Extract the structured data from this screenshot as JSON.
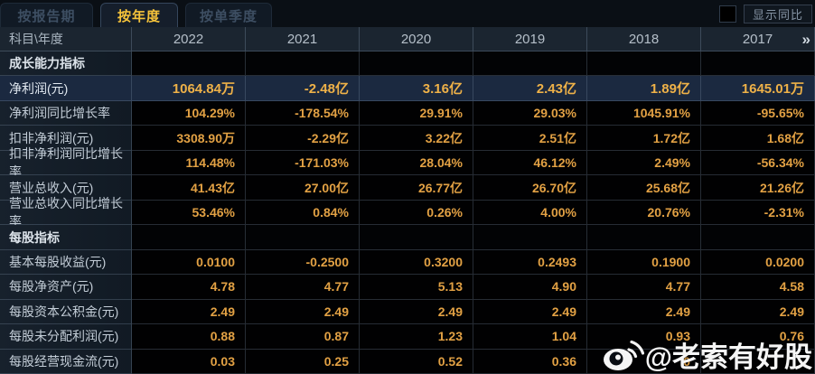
{
  "tabs": [
    {
      "label": "按报告期",
      "active": false
    },
    {
      "label": "按年度",
      "active": true
    },
    {
      "label": "按单季度",
      "active": false
    }
  ],
  "controls": {
    "show_yoy_label": "显示同比"
  },
  "table": {
    "corner_label": "科目\\年度",
    "years": [
      "2022",
      "2021",
      "2020",
      "2019",
      "2018",
      "2017"
    ],
    "next_icon": "»",
    "rows": [
      {
        "type": "section",
        "label": "成长能力指标",
        "values": []
      },
      {
        "type": "data",
        "highlight": true,
        "label": "净利润(元)",
        "values": [
          "1064.84万",
          "-2.48亿",
          "3.16亿",
          "2.43亿",
          "1.89亿",
          "1645.01万"
        ]
      },
      {
        "type": "data",
        "highlight": false,
        "label": "净利润同比增长率",
        "values": [
          "104.29%",
          "-178.54%",
          "29.91%",
          "29.03%",
          "1045.91%",
          "-95.65%"
        ]
      },
      {
        "type": "data",
        "highlight": false,
        "label": "扣非净利润(元)",
        "values": [
          "3308.90万",
          "-2.29亿",
          "3.22亿",
          "2.51亿",
          "1.72亿",
          "1.68亿"
        ]
      },
      {
        "type": "data",
        "highlight": false,
        "label": "扣非净利润同比增长率",
        "values": [
          "114.48%",
          "-171.03%",
          "28.04%",
          "46.12%",
          "2.49%",
          "-56.34%"
        ]
      },
      {
        "type": "data",
        "highlight": false,
        "label": "营业总收入(元)",
        "values": [
          "41.43亿",
          "27.00亿",
          "26.77亿",
          "26.70亿",
          "25.68亿",
          "21.26亿"
        ]
      },
      {
        "type": "data",
        "highlight": false,
        "label": "营业总收入同比增长率",
        "values": [
          "53.46%",
          "0.84%",
          "0.26%",
          "4.00%",
          "20.76%",
          "-2.31%"
        ]
      },
      {
        "type": "section",
        "label": "每股指标",
        "values": []
      },
      {
        "type": "data",
        "highlight": false,
        "label": "基本每股收益(元)",
        "values": [
          "0.0100",
          "-0.2500",
          "0.3200",
          "0.2493",
          "0.1900",
          "0.0200"
        ]
      },
      {
        "type": "data",
        "highlight": false,
        "label": "每股净资产(元)",
        "values": [
          "4.78",
          "4.77",
          "5.13",
          "4.90",
          "4.77",
          "4.58"
        ]
      },
      {
        "type": "data",
        "highlight": false,
        "label": "每股资本公积金(元)",
        "values": [
          "2.49",
          "2.49",
          "2.49",
          "2.49",
          "2.49",
          "2.49"
        ]
      },
      {
        "type": "data",
        "highlight": false,
        "label": "每股未分配利润(元)",
        "values": [
          "0.88",
          "0.87",
          "1.23",
          "1.04",
          "0.93",
          "0.76"
        ]
      },
      {
        "type": "data",
        "highlight": false,
        "label": "每股经营现金流(元)",
        "values": [
          "0.03",
          "0.25",
          "0.52",
          "0.36",
          "0",
          ""
        ]
      }
    ]
  },
  "watermark": {
    "text": "@老索有好股"
  },
  "colors": {
    "accent_gold": "#f5c33b",
    "value_orange": "#e2a144",
    "highlight_row_bg": "#1b2940",
    "header_bg": "#1b2530",
    "label_cell_bg": "#141d27",
    "value_cell_bg": "#010102"
  }
}
